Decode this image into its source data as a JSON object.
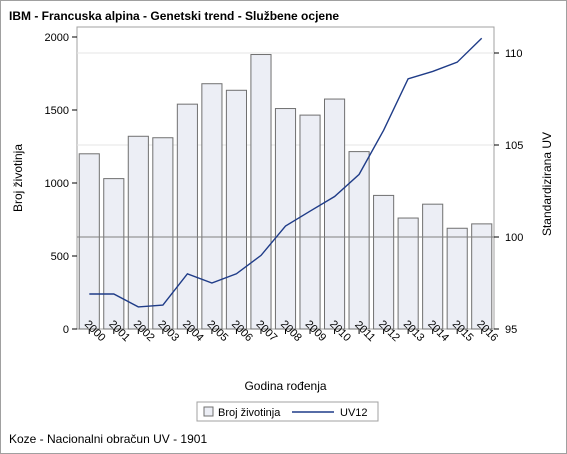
{
  "title": "IBM - Francuska alpina - Genetski trend - Službene ocjene",
  "footnote": "Koze - Nacionalni obračun UV - 1901",
  "chart_data": {
    "type": "bar+line",
    "xlabel": "Godina rođenja",
    "ylabel_left": "Broj životinja",
    "ylabel_right": "Standardizirana UV",
    "categories": [
      "2000",
      "2001",
      "2002",
      "2003",
      "2004",
      "2005",
      "2006",
      "2007",
      "2008",
      "2009",
      "2010",
      "2011",
      "2012",
      "2013",
      "2014",
      "2015",
      "2016"
    ],
    "y_left_range": [
      0,
      2000
    ],
    "y_left_ticks": [
      0,
      500,
      1000,
      1500,
      2000
    ],
    "y_right_range": [
      95,
      110.5
    ],
    "y_right_ticks": [
      95,
      100,
      105,
      110
    ],
    "reference_line_right": 100,
    "grid": "horizontal at right-axis ticks",
    "legend_position": "bottom",
    "series": [
      {
        "name": "Broj životinja",
        "kind": "bar",
        "axis": "left",
        "color": "#eceef5",
        "values": [
          1200,
          1030,
          1320,
          1310,
          1540,
          1680,
          1635,
          1880,
          1510,
          1465,
          1575,
          1215,
          915,
          760,
          855,
          690,
          720
        ]
      },
      {
        "name": "UV12",
        "kind": "line",
        "axis": "right",
        "color": "#1f3c88",
        "values": [
          96.9,
          96.9,
          96.2,
          96.3,
          98.0,
          97.5,
          98.0,
          99.0,
          100.6,
          101.4,
          102.2,
          103.4,
          105.8,
          108.6,
          109.0,
          109.5,
          110.8
        ]
      }
    ]
  }
}
